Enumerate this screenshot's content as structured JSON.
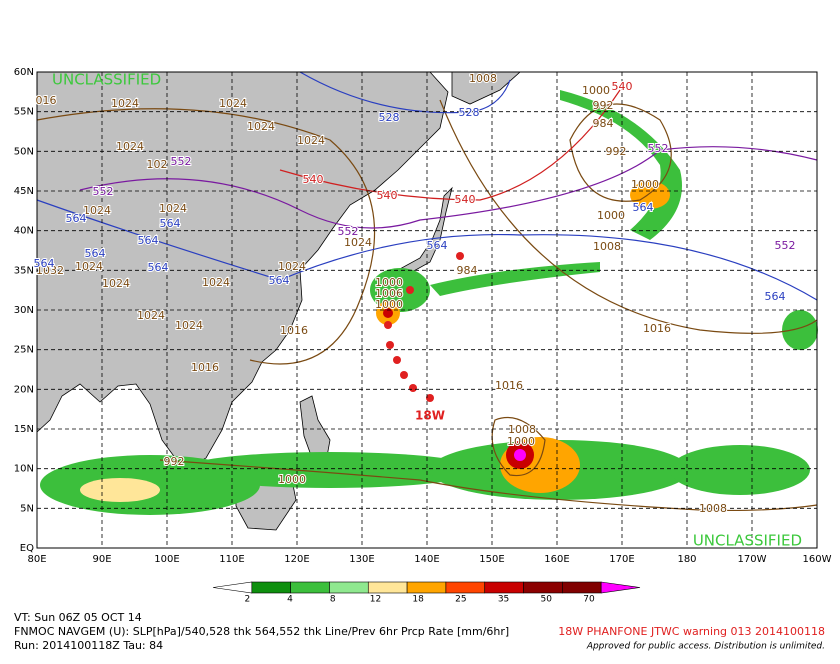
{
  "map": {
    "lat_labels": [
      "60N",
      "55N",
      "50N",
      "45N",
      "40N",
      "35N",
      "30N",
      "25N",
      "20N",
      "15N",
      "10N",
      "5N",
      "EQ"
    ],
    "lon_labels": [
      "80E",
      "90E",
      "100E",
      "110E",
      "120E",
      "130E",
      "140E",
      "150E",
      "160E",
      "170E",
      "180",
      "170W",
      "160W"
    ],
    "watermarks": [
      "UNCLASSIFIED",
      "UNCLASSIFIED"
    ],
    "storm_label": "18W",
    "contours": [
      {
        "color": "#7a4a12",
        "labels": [
          "016",
          "1024",
          "1024",
          "1024",
          "1024",
          "1024",
          "102",
          "1024",
          "1024",
          "1024",
          "1024",
          "1024",
          "1024",
          "1032",
          "1024",
          "1024",
          "1024",
          "1000",
          "1006",
          "1000",
          "984",
          "1016",
          "1016",
          "1016",
          "1016",
          "1008",
          "1000",
          "992",
          "1000",
          "1008",
          "1008",
          "1000",
          "992",
          "984",
          "992",
          "1000",
          "1000",
          "1008"
        ]
      },
      {
        "color": "#2a3fc0",
        "labels": [
          "528",
          "528",
          "564",
          "564",
          "564",
          "564",
          "564",
          "564",
          "564",
          "564",
          "564",
          "564"
        ]
      },
      {
        "color": "#7a1aa0",
        "labels": [
          "552",
          "552",
          "552",
          "552",
          "552"
        ]
      },
      {
        "color": "#d02020",
        "labels": [
          "540",
          "540",
          "540",
          "540"
        ]
      }
    ]
  },
  "colorbar": {
    "ticks": [
      2,
      4,
      8,
      12,
      18,
      25,
      35,
      50,
      70
    ],
    "colors": [
      "#ffffff",
      "#0e8f0e",
      "#3cbf3c",
      "#8fe88f",
      "#ffe699",
      "#ffa500",
      "#ff4500",
      "#c80000",
      "#8b0000",
      "#800000",
      "#ff00ff"
    ]
  },
  "footer": {
    "valid_time": "VT: Sun 06Z 05 OCT 14",
    "description": "FNMOC NAVGEM (U): SLP[hPa]/540,528 thk 564,552 thk Line/Prev 6hr Prcp Rate [mm/6hr]",
    "run": "Run: 2014100118Z Tau: 84",
    "warning": "18W PHANFONE JTWC warning 013 2014100118",
    "notice": "Approved for public access. Distribution is unlimited."
  }
}
